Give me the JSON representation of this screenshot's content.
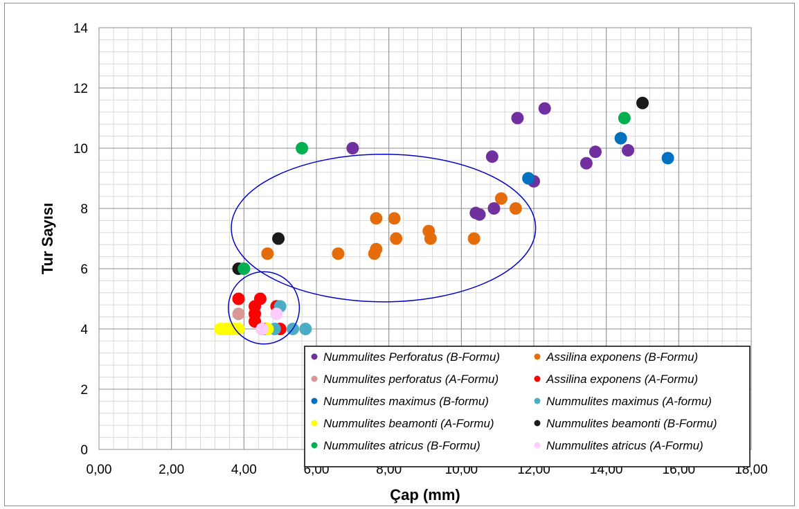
{
  "chart_data": {
    "type": "scatter",
    "title": "",
    "xlabel": "Çap (mm)",
    "ylabel": "Tur Sayısı",
    "xlim": [
      0,
      18
    ],
    "ylim": [
      0,
      14
    ],
    "x_major_step": 2,
    "y_major_step": 2,
    "x_minor_step": 0.4,
    "y_minor_step": 0.4,
    "x_tick_labels": [
      "0,00",
      "2,00",
      "4,00",
      "6,00",
      "8,00",
      "10,00",
      "12,00",
      "14,00",
      "16,00",
      "18,00"
    ],
    "y_tick_labels": [
      "0",
      "2",
      "4",
      "6",
      "8",
      "10",
      "12",
      "14"
    ],
    "grid": true,
    "legend_position": "bottom-right",
    "series": [
      {
        "name": "Nummulites Perforatus (B-Formu)",
        "color": "#7030a0",
        "points": [
          [
            7.0,
            10.0
          ],
          [
            10.85,
            9.72
          ],
          [
            11.55,
            11.0
          ],
          [
            12.3,
            11.32
          ],
          [
            12.0,
            8.9
          ],
          [
            13.45,
            9.5
          ],
          [
            13.7,
            9.88
          ],
          [
            14.6,
            9.93
          ],
          [
            10.4,
            7.85
          ],
          [
            10.5,
            7.8
          ],
          [
            10.9,
            8.0
          ]
        ]
      },
      {
        "name": "Assilina exponens (B-Formu)",
        "color": "#e46c0a",
        "points": [
          [
            4.65,
            6.5
          ],
          [
            6.6,
            6.5
          ],
          [
            7.6,
            6.5
          ],
          [
            7.65,
            6.65
          ],
          [
            7.65,
            7.67
          ],
          [
            8.15,
            7.67
          ],
          [
            8.2,
            7.0
          ],
          [
            9.1,
            7.25
          ],
          [
            9.15,
            7.0
          ],
          [
            10.35,
            7.0
          ],
          [
            11.1,
            8.33
          ],
          [
            11.5,
            8.0
          ]
        ]
      },
      {
        "name": "Nummulites perforatus (A-Formu)",
        "color": "#d99694",
        "points": [
          [
            3.85,
            4.5
          ]
        ]
      },
      {
        "name": "Assilina exponens (A-Formu)",
        "color": "#ff0000",
        "points": [
          [
            3.85,
            5.0
          ],
          [
            4.3,
            4.75
          ],
          [
            4.3,
            4.5
          ],
          [
            4.3,
            4.25
          ],
          [
            4.45,
            5.0
          ],
          [
            4.9,
            4.75
          ],
          [
            5.0,
            4.0
          ],
          [
            4.5,
            4.0
          ],
          [
            4.6,
            4.0
          ]
        ]
      },
      {
        "name": "Nummulites maximus (B-formu)",
        "color": "#0070c0",
        "points": [
          [
            11.85,
            9.0
          ],
          [
            14.4,
            10.33
          ],
          [
            15.7,
            9.67
          ]
        ]
      },
      {
        "name": "Nummulites maximus (A-formu)",
        "color": "#4bacc6",
        "points": [
          [
            5.0,
            4.75
          ],
          [
            5.35,
            4.0
          ],
          [
            5.7,
            4.0
          ],
          [
            4.85,
            4.0
          ]
        ]
      },
      {
        "name": "Nummulites beamonti (A-Formu)",
        "color": "#ffff00",
        "points": [
          [
            3.35,
            4.0
          ],
          [
            3.5,
            4.0
          ],
          [
            3.6,
            4.0
          ],
          [
            3.7,
            4.0
          ],
          [
            3.85,
            4.0
          ],
          [
            4.65,
            4.0
          ]
        ]
      },
      {
        "name": "Nummulites beamonti (B-Formu)",
        "color": "#1a1a1a",
        "points": [
          [
            3.85,
            6.0
          ],
          [
            4.95,
            7.0
          ],
          [
            15.0,
            11.5
          ]
        ]
      },
      {
        "name": "Nummulites atricus (B-Formu)",
        "color": "#00b050",
        "points": [
          [
            5.6,
            10.0
          ],
          [
            4.0,
            6.0
          ],
          [
            14.5,
            11.0
          ]
        ]
      },
      {
        "name": "Nummulites atricus (A-Formu)",
        "color": "#ffccff",
        "points": [
          [
            4.5,
            4.0
          ],
          [
            4.9,
            4.5
          ]
        ]
      }
    ],
    "annotations": [
      {
        "type": "ellipse",
        "color": "#0000cc",
        "cx": 7.85,
        "cy": 7.35,
        "rx": 4.2,
        "ry": 2.45
      },
      {
        "type": "ellipse",
        "color": "#0000cc",
        "cx": 4.55,
        "cy": 4.7,
        "rx": 0.98,
        "ry": 1.2
      }
    ]
  }
}
